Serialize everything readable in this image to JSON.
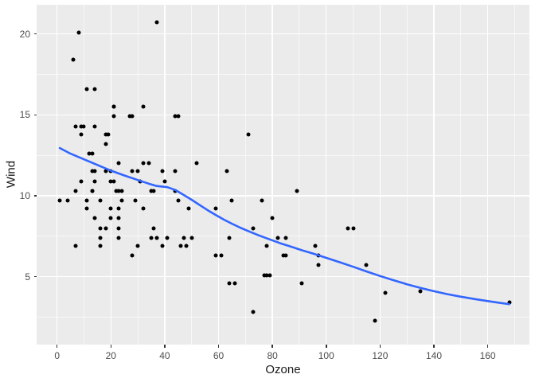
{
  "chart_data": {
    "type": "scatter",
    "title": "",
    "xlabel": "Ozone",
    "ylabel": "Wind",
    "xlim": [
      -7.6,
      175.5
    ],
    "ylim": [
      0.8,
      21.8
    ],
    "x_major_ticks": [
      0,
      20,
      40,
      60,
      80,
      100,
      120,
      140,
      160
    ],
    "x_minor_ticks": [
      10,
      30,
      50,
      70,
      90,
      110,
      130,
      150,
      170
    ],
    "y_major_ticks": [
      5,
      10,
      15,
      20
    ],
    "y_minor_ticks": [
      2.5,
      7.5,
      12.5,
      17.5
    ],
    "grid": "major-and-minor",
    "legend": "none",
    "theme": {
      "page_bg": "#FFFFFF",
      "panel_bg": "#EBEBEB",
      "grid_major_color": "#FFFFFF",
      "grid_minor_color": "rgba(255,255,255,0.62)",
      "point_color": "#000000",
      "smooth_line_color": "#3366FF",
      "tick_label_color": "#4D4D4D",
      "tick_mark_color": "#333333",
      "axis_title_color": "#1A1A1A"
    },
    "series": [
      {
        "name": "observations",
        "type": "scatter",
        "points": [
          [
            41,
            7.4
          ],
          [
            36,
            8.0
          ],
          [
            12,
            12.6
          ],
          [
            18,
            11.5
          ],
          [
            28,
            14.9
          ],
          [
            23,
            8.6
          ],
          [
            19,
            13.8
          ],
          [
            8,
            20.1
          ],
          [
            7,
            6.9
          ],
          [
            16,
            9.7
          ],
          [
            11,
            9.2
          ],
          [
            14,
            10.9
          ],
          [
            18,
            13.2
          ],
          [
            14,
            11.5
          ],
          [
            34,
            12.0
          ],
          [
            6,
            18.4
          ],
          [
            30,
            11.5
          ],
          [
            11,
            9.7
          ],
          [
            1,
            9.7
          ],
          [
            11,
            16.6
          ],
          [
            4,
            9.7
          ],
          [
            32,
            12.0
          ],
          [
            23,
            12.0
          ],
          [
            45,
            14.9
          ],
          [
            115,
            5.7
          ],
          [
            37,
            7.4
          ],
          [
            29,
            9.7
          ],
          [
            71,
            13.8
          ],
          [
            39,
            11.5
          ],
          [
            23,
            8.0
          ],
          [
            21,
            14.9
          ],
          [
            37,
            20.7
          ],
          [
            20,
            9.2
          ],
          [
            14,
            16.6
          ],
          [
            13,
            10.3
          ],
          [
            135,
            4.1
          ],
          [
            49,
            9.2
          ],
          [
            32,
            9.2
          ],
          [
            64,
            4.6
          ],
          [
            40,
            10.9
          ],
          [
            77,
            5.1
          ],
          [
            97,
            6.3
          ],
          [
            97,
            5.7
          ],
          [
            85,
            7.4
          ],
          [
            10,
            14.3
          ],
          [
            27,
            14.9
          ],
          [
            7,
            14.3
          ],
          [
            48,
            6.9
          ],
          [
            35,
            10.3
          ],
          [
            61,
            6.3
          ],
          [
            79,
            5.1
          ],
          [
            63,
            11.5
          ],
          [
            16,
            6.9
          ],
          [
            80,
            8.6
          ],
          [
            108,
            8.0
          ],
          [
            20,
            8.6
          ],
          [
            52,
            12.0
          ],
          [
            82,
            7.4
          ],
          [
            50,
            7.4
          ],
          [
            64,
            7.4
          ],
          [
            59,
            9.2
          ],
          [
            39,
            6.9
          ],
          [
            9,
            13.8
          ],
          [
            16,
            7.4
          ],
          [
            78,
            6.9
          ],
          [
            35,
            7.4
          ],
          [
            66,
            4.6
          ],
          [
            122,
            4.0
          ],
          [
            89,
            10.3
          ],
          [
            110,
            8.0
          ],
          [
            44,
            11.5
          ],
          [
            28,
            11.5
          ],
          [
            65,
            9.7
          ],
          [
            22,
            10.3
          ],
          [
            59,
            6.3
          ],
          [
            23,
            7.4
          ],
          [
            31,
            10.9
          ],
          [
            44,
            10.3
          ],
          [
            21,
            15.5
          ],
          [
            9,
            14.3
          ],
          [
            45,
            9.7
          ],
          [
            168,
            3.4
          ],
          [
            73,
            8.0
          ],
          [
            76,
            9.7
          ],
          [
            118,
            2.3
          ],
          [
            84,
            6.3
          ],
          [
            85,
            6.3
          ],
          [
            96,
            6.9
          ],
          [
            78,
            5.1
          ],
          [
            73,
            2.8
          ],
          [
            91,
            4.6
          ],
          [
            47,
            7.4
          ],
          [
            32,
            15.5
          ],
          [
            20,
            10.9
          ],
          [
            23,
            10.3
          ],
          [
            21,
            10.9
          ],
          [
            24,
            9.7
          ],
          [
            44,
            14.9
          ],
          [
            21,
            15.5
          ],
          [
            28,
            6.3
          ],
          [
            9,
            10.9
          ],
          [
            13,
            11.5
          ],
          [
            46,
            6.9
          ],
          [
            18,
            13.8
          ],
          [
            13,
            10.3
          ],
          [
            24,
            10.3
          ],
          [
            16,
            8.0
          ],
          [
            13,
            12.6
          ],
          [
            23,
            9.2
          ],
          [
            36,
            10.3
          ],
          [
            7,
            10.3
          ],
          [
            14,
            8.6
          ],
          [
            30,
            6.9
          ],
          [
            14,
            14.3
          ],
          [
            18,
            8.0
          ],
          [
            20,
            11.5
          ]
        ]
      },
      {
        "name": "loess-smooth",
        "type": "line",
        "points": [
          [
            1,
            12.95
          ],
          [
            5,
            12.6
          ],
          [
            10,
            12.25
          ],
          [
            15,
            11.9
          ],
          [
            20,
            11.55
          ],
          [
            25,
            11.25
          ],
          [
            30,
            10.97
          ],
          [
            34,
            10.75
          ],
          [
            37,
            10.6
          ],
          [
            41,
            10.53
          ],
          [
            44,
            10.35
          ],
          [
            47,
            10.05
          ],
          [
            50,
            9.75
          ],
          [
            53,
            9.42
          ],
          [
            56,
            9.1
          ],
          [
            59,
            8.8
          ],
          [
            62,
            8.52
          ],
          [
            65,
            8.27
          ],
          [
            68,
            8.03
          ],
          [
            71,
            7.82
          ],
          [
            75,
            7.55
          ],
          [
            79,
            7.3
          ],
          [
            83,
            7.06
          ],
          [
            87,
            6.85
          ],
          [
            91,
            6.63
          ],
          [
            95,
            6.43
          ],
          [
            100,
            6.16
          ],
          [
            105,
            5.89
          ],
          [
            110,
            5.61
          ],
          [
            115,
            5.32
          ],
          [
            120,
            5.04
          ],
          [
            125,
            4.78
          ],
          [
            130,
            4.53
          ],
          [
            135,
            4.3
          ],
          [
            140,
            4.1
          ],
          [
            145,
            3.92
          ],
          [
            150,
            3.76
          ],
          [
            155,
            3.62
          ],
          [
            160,
            3.49
          ],
          [
            164,
            3.39
          ],
          [
            168,
            3.3
          ]
        ]
      }
    ]
  }
}
